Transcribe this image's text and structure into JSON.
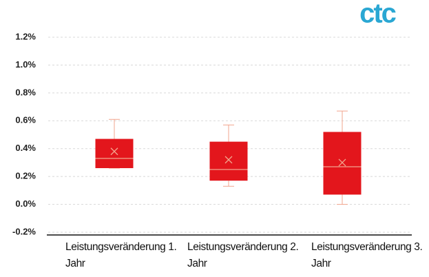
{
  "chart_data": {
    "type": "box",
    "logo": "ctc",
    "categories": [
      "Leistungsveränderung 1. Jahr",
      "Leistungsveränderung 2. Jahr",
      "Leistungsveränderung 3. Jahr"
    ],
    "boxes": [
      {
        "min": 0.26,
        "q1": 0.26,
        "median": 0.33,
        "q3": 0.47,
        "max": 0.61,
        "mean": 0.38
      },
      {
        "min": 0.13,
        "q1": 0.17,
        "median": 0.25,
        "q3": 0.45,
        "max": 0.57,
        "mean": 0.32
      },
      {
        "min": 0.0,
        "q1": 0.07,
        "median": 0.27,
        "q3": 0.52,
        "max": 0.67,
        "mean": 0.3
      }
    ],
    "color": "#e3161c",
    "line_color": "#f2a58e",
    "ylim": [
      -0.2,
      1.2
    ],
    "yticks": [
      {
        "value": -0.2,
        "label": "-0.2%"
      },
      {
        "value": 0,
        "label": "0.0%"
      },
      {
        "value": 0.2,
        "label": "0.2%"
      },
      {
        "value": 0.4,
        "label": "0.4%"
      },
      {
        "value": 0.6,
        "label": "0.6%"
      },
      {
        "value": 0.8,
        "label": "0.8%"
      },
      {
        "value": 1.0,
        "label": "1.0%"
      },
      {
        "value": 1.2,
        "label": "1.2%"
      }
    ],
    "grid": true
  }
}
